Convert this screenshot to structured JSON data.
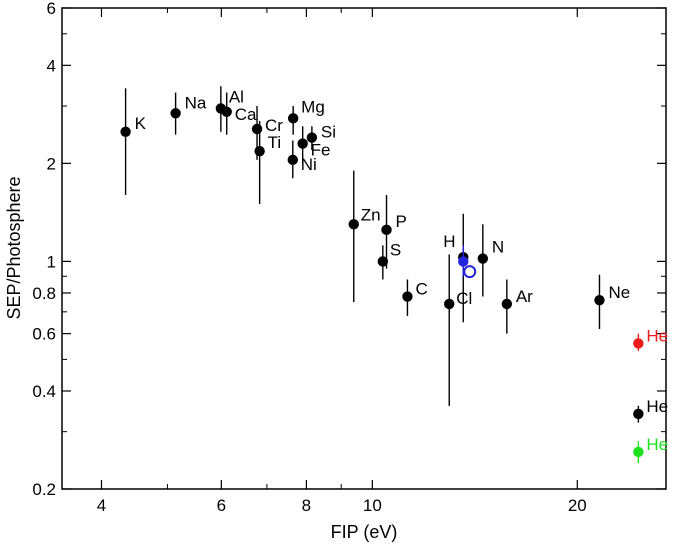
{
  "chart_data": {
    "type": "scatter",
    "xlabel": "FIP (eV)",
    "ylabel": "SEP/Photosphere",
    "xscale": "log",
    "yscale": "log",
    "xlim": [
      3.5,
      27.0
    ],
    "ylim": [
      0.2,
      6.0
    ],
    "grid": false,
    "x_ticks": [
      4,
      6,
      8,
      10,
      20
    ],
    "y_ticks": [
      0.2,
      0.4,
      0.6,
      0.8,
      1,
      2,
      4,
      6
    ],
    "points": [
      {
        "label": "K",
        "x": 4.34,
        "y": 2.5,
        "lo": 1.6,
        "hi": 3.4,
        "color": "#000000",
        "marker": "filled"
      },
      {
        "label": "Na",
        "x": 5.14,
        "y": 2.85,
        "lo": 2.45,
        "hi": 3.3,
        "color": "#000000",
        "marker": "filled"
      },
      {
        "label": "Al",
        "x": 5.99,
        "y": 2.95,
        "lo": 2.5,
        "hi": 3.45,
        "color": "#000000",
        "marker": "filled"
      },
      {
        "label": "Ca",
        "x": 6.11,
        "y": 2.88,
        "lo": 2.45,
        "hi": 3.3,
        "color": "#000000",
        "marker": "filled"
      },
      {
        "label": "Cr",
        "x": 6.77,
        "y": 2.55,
        "lo": 2.05,
        "hi": 3.0,
        "color": "#000000",
        "marker": "filled"
      },
      {
        "label": "Ti",
        "x": 6.83,
        "y": 2.18,
        "lo": 1.5,
        "hi": 2.7,
        "color": "#000000",
        "marker": "filled"
      },
      {
        "label": "Mg",
        "x": 7.65,
        "y": 2.75,
        "lo": 2.45,
        "hi": 3.0,
        "color": "#000000",
        "marker": "filled"
      },
      {
        "label": "Ni",
        "x": 7.64,
        "y": 2.05,
        "lo": 1.8,
        "hi": 2.35,
        "color": "#000000",
        "marker": "filled"
      },
      {
        "label": "Fe",
        "x": 7.9,
        "y": 2.3,
        "lo": 2.0,
        "hi": 2.6,
        "color": "#000000",
        "marker": "filled"
      },
      {
        "label": "Si",
        "x": 8.15,
        "y": 2.4,
        "lo": 2.2,
        "hi": 2.6,
        "color": "#000000",
        "marker": "filled"
      },
      {
        "label": "Zn",
        "x": 9.39,
        "y": 1.3,
        "lo": 0.75,
        "hi": 1.9,
        "color": "#000000",
        "marker": "filled"
      },
      {
        "label": "P",
        "x": 10.49,
        "y": 1.25,
        "lo": 0.95,
        "hi": 1.6,
        "color": "#000000",
        "marker": "filled"
      },
      {
        "label": "S",
        "x": 10.36,
        "y": 1.0,
        "lo": 0.88,
        "hi": 1.12,
        "color": "#000000",
        "marker": "filled"
      },
      {
        "label": "C",
        "x": 11.26,
        "y": 0.78,
        "lo": 0.68,
        "hi": 0.88,
        "color": "#000000",
        "marker": "filled"
      },
      {
        "label": "Cl",
        "x": 12.97,
        "y": 0.74,
        "lo": 0.36,
        "hi": 1.05,
        "color": "#000000",
        "marker": "filled"
      },
      {
        "label": "H",
        "x": 13.6,
        "y": 1.03,
        "lo": 0.65,
        "hi": 1.4,
        "color": "#000000",
        "marker": "filled"
      },
      {
        "label": "",
        "x": 13.6,
        "y": 1.0,
        "lo": 0.9,
        "hi": 1.12,
        "color": "#2424d9",
        "marker": "filled"
      },
      {
        "label": "",
        "x": 13.9,
        "y": 0.93,
        "lo": null,
        "hi": null,
        "color": "#2424d9",
        "marker": "open"
      },
      {
        "label": "N",
        "x": 14.53,
        "y": 1.02,
        "lo": 0.78,
        "hi": 1.3,
        "color": "#000000",
        "marker": "filled"
      },
      {
        "label": "Ar",
        "x": 15.76,
        "y": 0.74,
        "lo": 0.6,
        "hi": 0.88,
        "color": "#000000",
        "marker": "filled"
      },
      {
        "label": "Ne",
        "x": 21.56,
        "y": 0.76,
        "lo": 0.62,
        "hi": 0.91,
        "color": "#000000",
        "marker": "filled"
      },
      {
        "label": "He",
        "x": 24.59,
        "y": 0.56,
        "lo": 0.53,
        "hi": 0.6,
        "color": "#ec1c1c",
        "marker": "filled"
      },
      {
        "label": "He",
        "x": 24.59,
        "y": 0.34,
        "lo": 0.32,
        "hi": 0.36,
        "color": "#000000",
        "marker": "filled"
      },
      {
        "label": "He",
        "x": 24.59,
        "y": 0.26,
        "lo": 0.24,
        "hi": 0.28,
        "color": "#1ee11e",
        "marker": "filled"
      }
    ]
  }
}
